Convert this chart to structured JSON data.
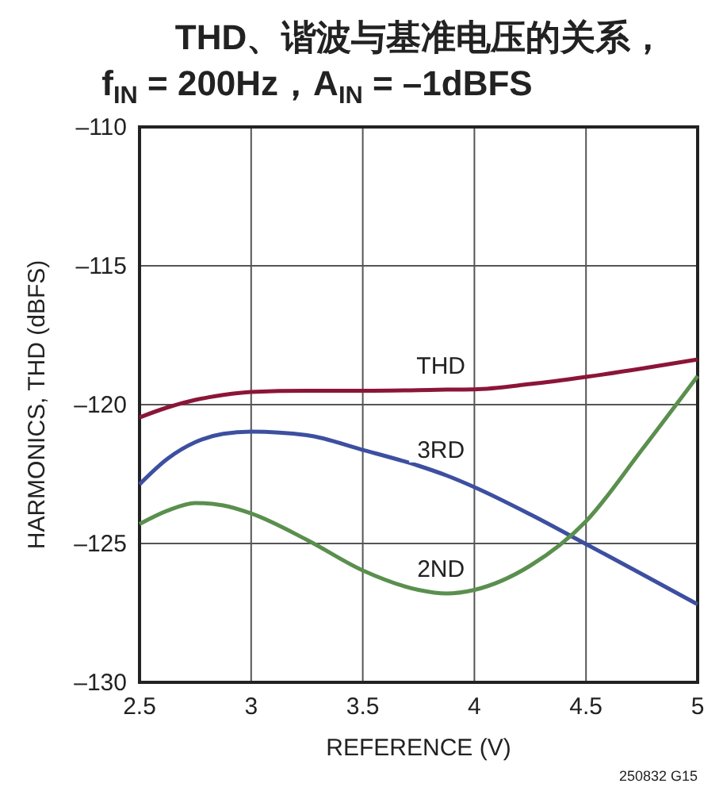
{
  "chart_data": {
    "type": "line",
    "title": "THD、谐波与基准电压的关系，",
    "subtitle": "f$_{IN}$ = 200Hz，A$_{IN}$ = –1dBFS",
    "xlabel": "REFERENCE  (V)",
    "ylabel": "HARMONICS, THD (dBFS)",
    "x": [
      2.5,
      2.625,
      2.75,
      2.875,
      3,
      3.25,
      3.5,
      3.75,
      3.875,
      4,
      4.25,
      4.5,
      4.75,
      5
    ],
    "series": [
      {
        "name": "THD",
        "color": "#8b1538",
        "values": [
          -120.46,
          -120.1,
          -119.83,
          -119.65,
          -119.54,
          -119.5,
          -119.5,
          -119.48,
          -119.46,
          -119.45,
          -119.26,
          -119.0,
          -118.7,
          -118.37
        ]
      },
      {
        "name": "3RD",
        "color": "#3d4fa0",
        "values": [
          -122.87,
          -121.95,
          -121.35,
          -121.05,
          -120.97,
          -121.1,
          -121.63,
          -122.2,
          -122.55,
          -122.97,
          -123.95,
          -125.02,
          -126.1,
          -127.19
        ]
      },
      {
        "name": "2ND",
        "color": "#5a8f4e",
        "values": [
          -124.3,
          -123.82,
          -123.54,
          -123.63,
          -123.92,
          -124.87,
          -125.97,
          -126.67,
          -126.8,
          -126.67,
          -125.8,
          -124.2,
          -121.63,
          -118.97
        ]
      }
    ],
    "xlim": [
      2.5,
      5
    ],
    "xticks": [
      2.5,
      3,
      3.5,
      4,
      4.5,
      5
    ],
    "ylim": [
      -130,
      -110
    ],
    "yticks": [
      {
        "value": -130,
        "label": "–130"
      },
      {
        "value": -125,
        "label": "–125"
      },
      {
        "value": -120,
        "label": "–120"
      },
      {
        "value": -115,
        "label": "–115"
      },
      {
        "value": -110,
        "label": "–110"
      }
    ],
    "grid": true,
    "marker": "none",
    "line_style": "solid",
    "annotations": [
      "250832 G15"
    ]
  }
}
